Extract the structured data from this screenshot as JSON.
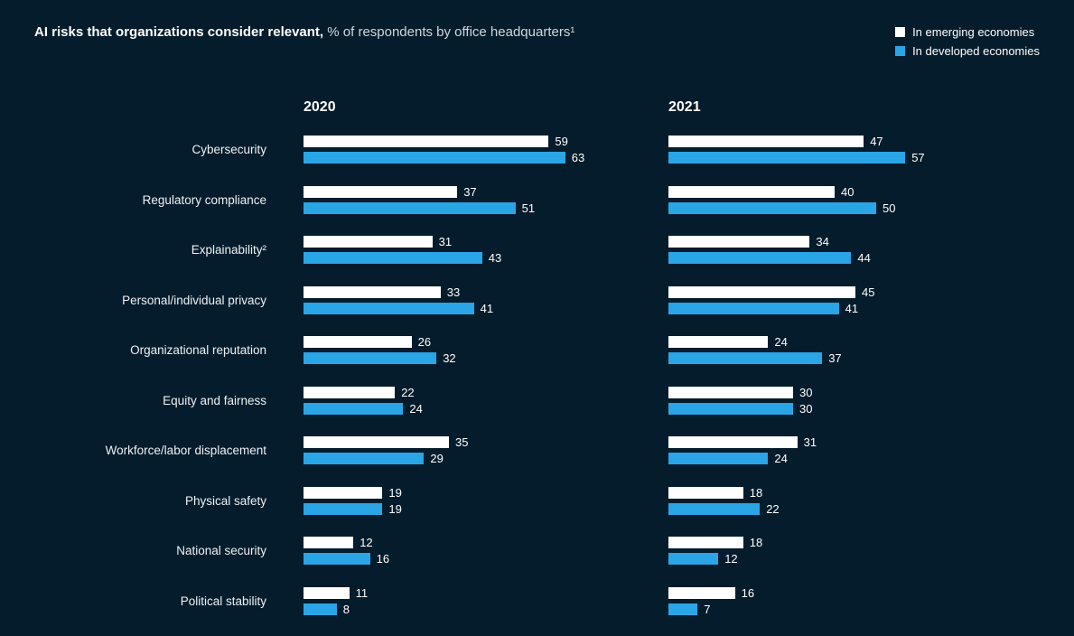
{
  "title": {
    "bold": "AI risks that organizations consider relevant,",
    "rest": " % of respondents by office headquarters¹"
  },
  "legend": [
    {
      "label": "In emerging economies",
      "color": "#ffffff"
    },
    {
      "label": "In developed economies",
      "color": "#2aa5e5"
    }
  ],
  "colors": {
    "background": "#051c2c",
    "emerging": "#ffffff",
    "developed": "#2aa5e5",
    "text": "#ffffff"
  },
  "chart_data": {
    "type": "bar",
    "orientation": "horizontal",
    "title": "AI risks that organizations consider relevant, % of respondents by office headquarters¹",
    "xlim": [
      0,
      70
    ],
    "grid": false,
    "legend_position": "top-right",
    "categories": [
      "Cybersecurity",
      "Regulatory compliance",
      "Explainability²",
      "Personal/individual privacy",
      "Organizational reputation",
      "Equity and fairness",
      "Workforce/labor displacement",
      "Physical safety",
      "National security",
      "Political stability"
    ],
    "groups": [
      {
        "label": "2020",
        "series": [
          {
            "name": "In emerging economies",
            "values": [
              59,
              37,
              31,
              33,
              26,
              22,
              35,
              19,
              12,
              11
            ]
          },
          {
            "name": "In developed economies",
            "values": [
              63,
              51,
              43,
              41,
              32,
              24,
              29,
              19,
              16,
              8
            ]
          }
        ]
      },
      {
        "label": "2021",
        "series": [
          {
            "name": "In emerging economies",
            "values": [
              47,
              40,
              34,
              45,
              24,
              30,
              31,
              18,
              18,
              16
            ]
          },
          {
            "name": "In developed economies",
            "values": [
              57,
              50,
              44,
              41,
              37,
              30,
              24,
              22,
              12,
              7
            ]
          }
        ]
      }
    ]
  }
}
